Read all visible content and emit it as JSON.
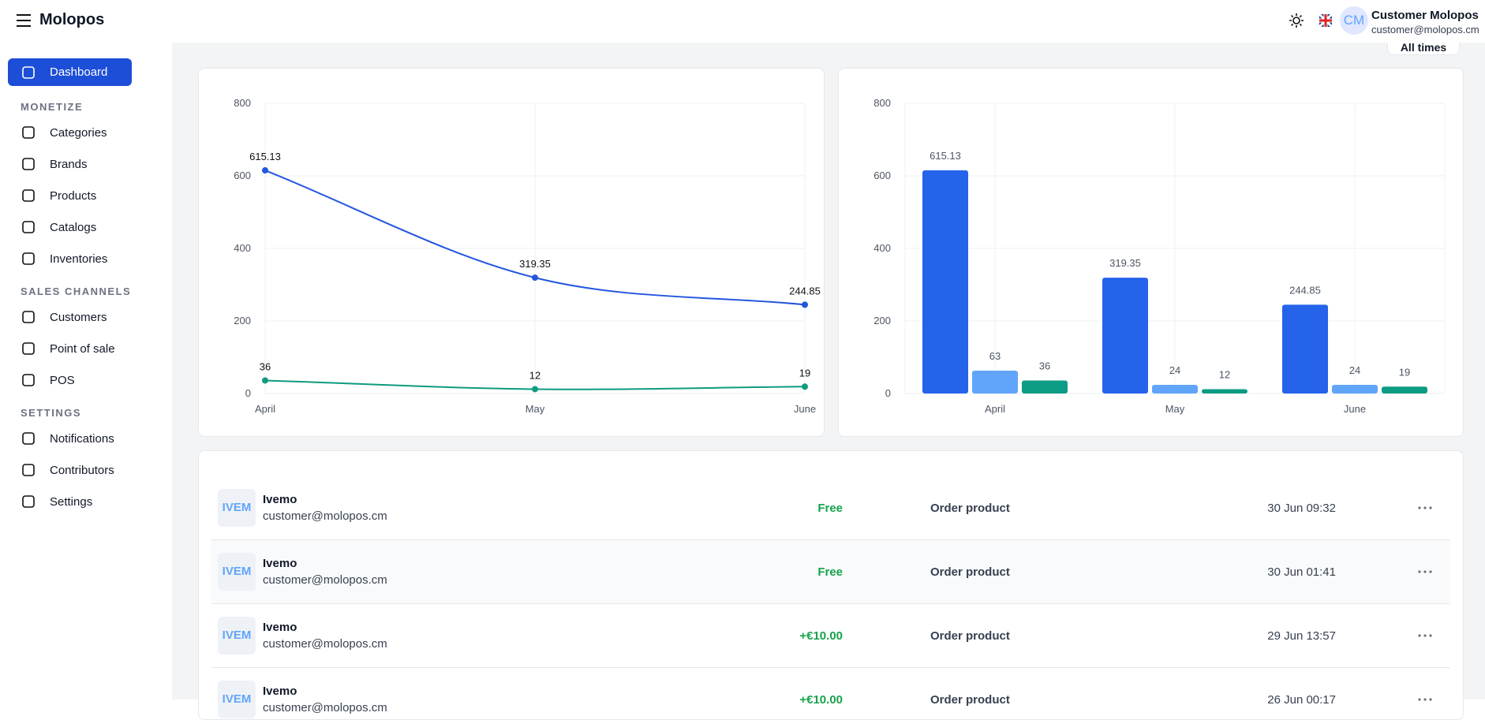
{
  "header": {
    "brand": "Molopos",
    "avatar": "CM",
    "user_name": "Customer Molopos",
    "user_email": "customer@molopos.cm"
  },
  "toolbar": {
    "filter": "All times"
  },
  "sidebar": {
    "active": "Dashboard",
    "sections": [
      {
        "title": "MONETIZE",
        "items": [
          "Categories",
          "Brands",
          "Products",
          "Catalogs",
          "Inventories"
        ]
      },
      {
        "title": "SALES CHANNELS",
        "items": [
          "Customers",
          "Point of sale",
          "POS"
        ]
      },
      {
        "title": "SETTINGS",
        "items": [
          "Notifications",
          "Contributors",
          "Settings"
        ]
      }
    ]
  },
  "chart_data": [
    {
      "type": "line",
      "categories": [
        "April",
        "May",
        "June"
      ],
      "series": [
        {
          "color": "#2356e0",
          "values": [
            615.13,
            319.35,
            244.85
          ]
        },
        {
          "color": "#0f9b7f",
          "values": [
            36,
            12,
            19
          ]
        }
      ],
      "ylim": [
        0,
        800
      ],
      "yticks": [
        0,
        200,
        400,
        600,
        800
      ],
      "grid": true
    },
    {
      "type": "bar",
      "categories": [
        "April",
        "May",
        "June"
      ],
      "series": [
        {
          "color": "#2563eb",
          "values": [
            615.13,
            319.35,
            244.85
          ]
        },
        {
          "color": "#60a5fa",
          "values": [
            63,
            24,
            24
          ]
        },
        {
          "color": "#0c9b84",
          "values": [
            36,
            12,
            19
          ]
        }
      ],
      "ylim": [
        0,
        800
      ],
      "yticks": [
        0,
        200,
        400,
        600,
        800
      ],
      "grid": true
    }
  ],
  "table": {
    "rows": [
      [
        "IVEM",
        "Ivemo",
        "customer@molopos.cm",
        "Free",
        "Order product",
        "30 Jun 09:32"
      ],
      [
        "IVEM",
        "Ivemo",
        "customer@molopos.cm",
        "Free",
        "Order product",
        "30 Jun 01:41"
      ],
      [
        "IVEM",
        "Ivemo",
        "customer@molopos.cm",
        "+€10.00",
        "Order product",
        "29 Jun 13:57"
      ],
      [
        "IVEM",
        "Ivemo",
        "customer@molopos.cm",
        "+€10.00",
        "Order product",
        "26 Jun 00:17"
      ]
    ]
  }
}
